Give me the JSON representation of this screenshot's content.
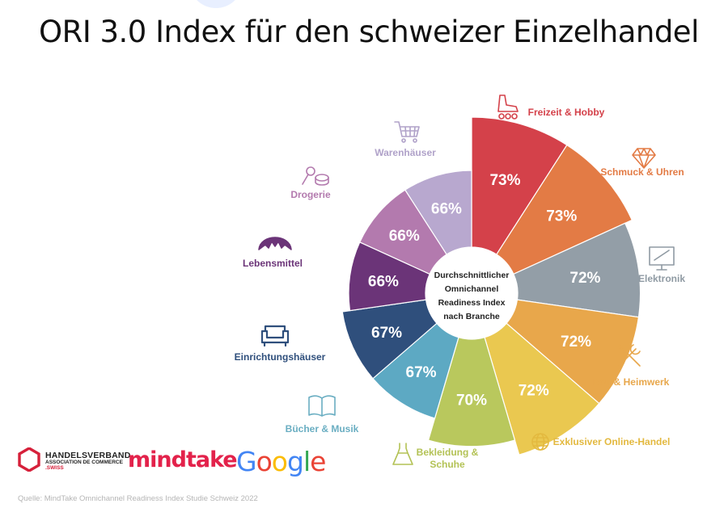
{
  "title": "ORI 3.0 Index für den schweizer Einzelhandel",
  "chart_data": {
    "type": "pie",
    "variant": "variable-radius donut",
    "center_label": [
      "Durchschnittlicher",
      "Omnichannel",
      "Readiness Index",
      "nach Branche"
    ],
    "categories": [
      "Freizeit & Hobby",
      "Schmuck & Uhren",
      "Elektronik",
      "Bau & Heimwerk",
      "Exklusiver Online-Handel",
      "Bekleidung & Schuhe",
      "Bücher & Musik",
      "Einrichtungshäuser",
      "Lebensmittel",
      "Drogerie",
      "Warenhäuser"
    ],
    "values": [
      73,
      73,
      72,
      72,
      72,
      70,
      67,
      67,
      66,
      66,
      66
    ],
    "value_labels": [
      "73%",
      "73%",
      "72%",
      "72%",
      "72%",
      "70%",
      "67%",
      "67%",
      "66%",
      "66%",
      "66%"
    ],
    "colors": [
      "#d4414a",
      "#e37b45",
      "#939ea7",
      "#e8a74b",
      "#eac850",
      "#b9c85d",
      "#5da9c3",
      "#2f4f7c",
      "#6b3478",
      "#b37aae",
      "#b8a8cf"
    ],
    "label_colors": [
      "#d4414a",
      "#e37b45",
      "#8f9aa3",
      "#e8a74b",
      "#e3b93f",
      "#b3c255",
      "#6aaec2",
      "#2f4f7c",
      "#6b3478",
      "#b37aae",
      "#b0a2c9"
    ],
    "icons": [
      "rollerskate-icon",
      "diamond-icon",
      "monitor-icon",
      "tools-icon",
      "globe-icon",
      "dress-icon",
      "book-icon",
      "sofa-icon",
      "croissant-icon",
      "cosmetics-icon",
      "cart-icon"
    ]
  },
  "logos": {
    "handelsverband": [
      "HANDELSVERBAND",
      "ASSOCIATION DE COMMERCE",
      ".SWISS"
    ],
    "mindtake": "mindtake",
    "google": [
      "G",
      "o",
      "o",
      "g",
      "l",
      "e"
    ],
    "google_colors": [
      "#4285f4",
      "#ea4335",
      "#fbbc05",
      "#4285f4",
      "#34a853",
      "#ea4335"
    ]
  },
  "source": "Quelle: MindTake Omnichannel Readiness Index Studie Schweiz 2022"
}
